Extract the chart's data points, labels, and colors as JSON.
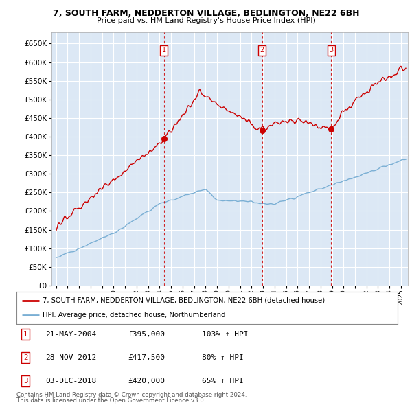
{
  "title": "7, SOUTH FARM, NEDDERTON VILLAGE, BEDLINGTON, NE22 6BH",
  "subtitle": "Price paid vs. HM Land Registry's House Price Index (HPI)",
  "legend_line1": "7, SOUTH FARM, NEDDERTON VILLAGE, BEDLINGTON, NE22 6BH (detached house)",
  "legend_line2": "HPI: Average price, detached house, Northumberland",
  "footer1": "Contains HM Land Registry data © Crown copyright and database right 2024.",
  "footer2": "This data is licensed under the Open Government Licence v3.0.",
  "sales": [
    {
      "label": "1",
      "date": "21-MAY-2004",
      "price": "£395,000",
      "hpi": "103% ↑ HPI",
      "year": 2004.38
    },
    {
      "label": "2",
      "date": "28-NOV-2012",
      "price": "£417,500",
      "hpi": "80% ↑ HPI",
      "year": 2012.91
    },
    {
      "label": "3",
      "date": "03-DEC-2018",
      "price": "£420,000",
      "hpi": "65% ↑ HPI",
      "year": 2018.92
    }
  ],
  "sale_prices": [
    395000,
    417500,
    420000
  ],
  "ylim": [
    0,
    680000
  ],
  "yticks": [
    0,
    50000,
    100000,
    150000,
    200000,
    250000,
    300000,
    350000,
    400000,
    450000,
    500000,
    550000,
    600000,
    650000
  ],
  "xlim_left": 1994.6,
  "xlim_right": 2025.6,
  "plot_bg": "#dce8f5",
  "red_color": "#cc0000",
  "blue_color": "#7aafd4",
  "grid_color": "#ffffff",
  "title_fontsize": 9.0,
  "subtitle_fontsize": 8.0
}
